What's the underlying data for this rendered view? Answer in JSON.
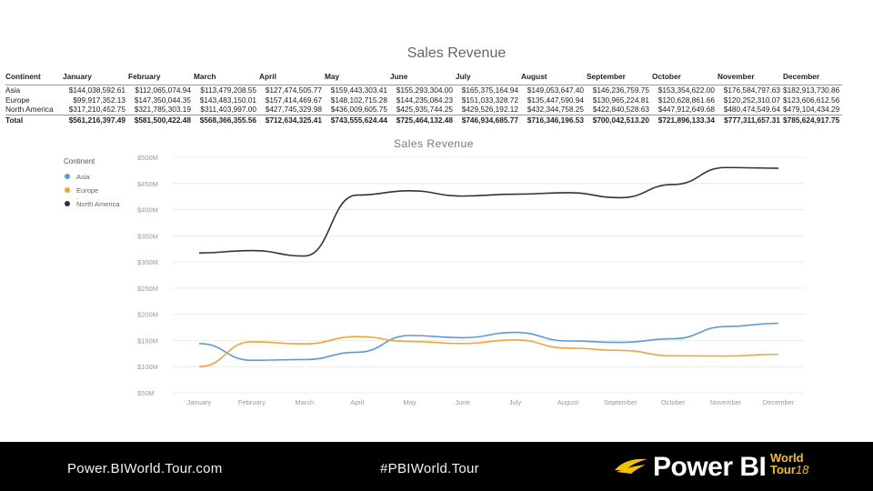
{
  "table": {
    "title": "Sales Revenue",
    "headers": [
      "Continent",
      "January",
      "February",
      "March",
      "April",
      "May",
      "June",
      "July",
      "August",
      "September",
      "October",
      "November",
      "December"
    ],
    "rows": [
      [
        "Asia",
        "$144,038,592.61",
        "$112,065,074.94",
        "$113,479,208.55",
        "$127,474,505.77",
        "$159,443,303.41",
        "$155,293,304.00",
        "$165,375,164.94",
        "$149,053,647.40",
        "$146,236,759.75",
        "$153,354,622.00",
        "$176,584,797.63",
        "$182,913,730.86"
      ],
      [
        "Europe",
        "$99,917,352.13",
        "$147,350,044.35",
        "$143,483,150.01",
        "$157,414,469.67",
        "$148,102,715.28",
        "$144,235,084.23",
        "$151,033,328.72",
        "$135,447,590.94",
        "$130,965,224.81",
        "$120,628,861.66",
        "$120,252,310.07",
        "$123,606,612.56"
      ],
      [
        "North America",
        "$317,210,452.75",
        "$321,785,303.19",
        "$311,403,997.00",
        "$427,745,329.98",
        "$436,009,605.75",
        "$425,935,744.25",
        "$429,526,192.12",
        "$432,344,758.25",
        "$422,840,528.63",
        "$447,912,649.68",
        "$480,474,549.64",
        "$479,104,434.29"
      ],
      [
        "Total",
        "$561,216,397.49",
        "$581,500,422.48",
        "$568,366,355.56",
        "$712,634,325.41",
        "$743,555,624.44",
        "$725,464,132.48",
        "$746,934,685.77",
        "$716,346,196.53",
        "$700,042,513.20",
        "$721,896,133.34",
        "$777,311,657.31",
        "$785,624,917.75"
      ]
    ]
  },
  "chart_data": {
    "type": "line",
    "title": "Sales Revenue",
    "legend_title": "Continent",
    "legend_position": "top-left",
    "categories": [
      "January",
      "February",
      "March",
      "April",
      "May",
      "June",
      "July",
      "August",
      "September",
      "October",
      "November",
      "December"
    ],
    "y_ticks": [
      "$50M",
      "$100M",
      "$150M",
      "$200M",
      "$250M",
      "$300M",
      "$350M",
      "$400M",
      "$450M",
      "$500M"
    ],
    "y_tick_values": [
      50,
      100,
      150,
      200,
      250,
      300,
      350,
      400,
      450,
      500
    ],
    "ylim": [
      50,
      500
    ],
    "unit": "millions USD",
    "series": [
      {
        "name": "Asia",
        "color": "#5a9bd5",
        "values": [
          144.04,
          112.07,
          113.48,
          127.47,
          159.44,
          155.29,
          165.38,
          149.05,
          146.24,
          153.35,
          176.58,
          182.91
        ]
      },
      {
        "name": "Europe",
        "color": "#f0a53a",
        "values": [
          99.92,
          147.35,
          143.48,
          157.41,
          148.1,
          144.24,
          151.03,
          135.45,
          130.97,
          120.63,
          120.25,
          123.61
        ]
      },
      {
        "name": "North America",
        "color": "#333333",
        "values": [
          317.21,
          321.79,
          311.4,
          427.75,
          436.01,
          425.94,
          429.53,
          432.34,
          422.84,
          447.91,
          480.47,
          479.1
        ]
      }
    ]
  },
  "footer": {
    "site": "Power.BIWorld.Tour.com",
    "hashtag": "#PBIWorld.Tour",
    "logo_text": "Power BI",
    "logo_world": "World",
    "logo_tour": "Tour",
    "logo_year": "18"
  }
}
